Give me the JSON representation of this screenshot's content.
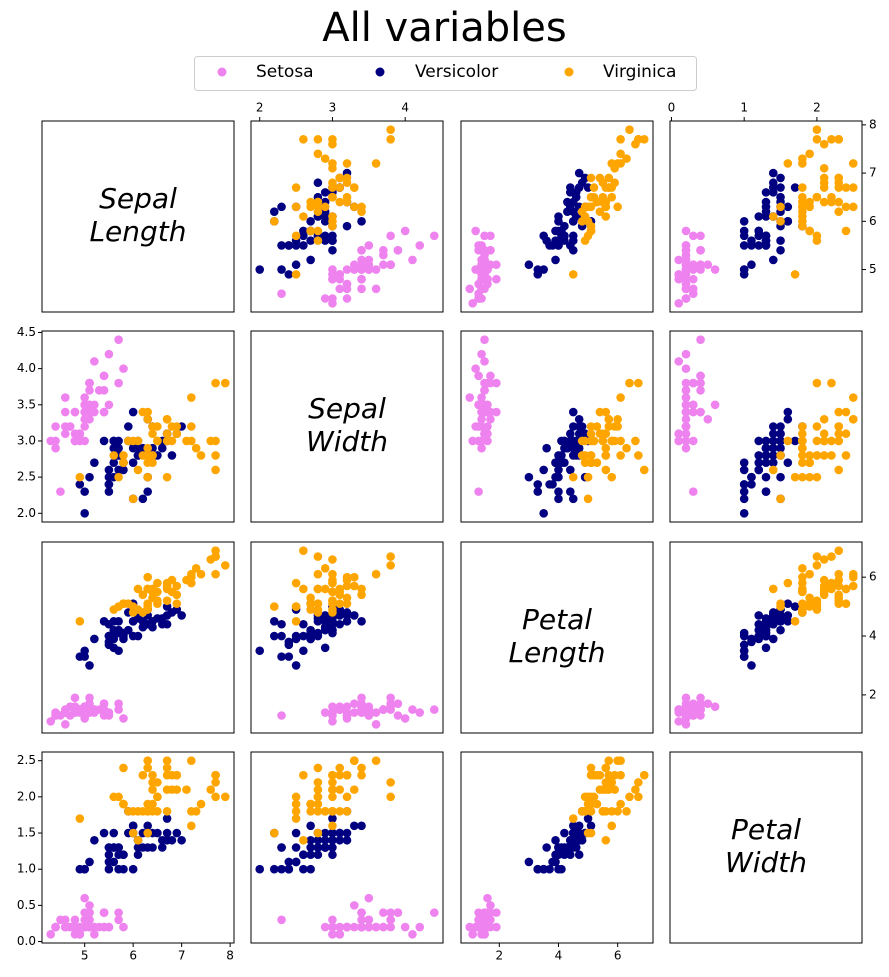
{
  "chart_data": {
    "type": "scatter_matrix",
    "title": "All variables",
    "variables": [
      {
        "label": [
          "Sepal",
          "Length"
        ],
        "lim": [
          4.12,
          8.08
        ],
        "xticks": [
          5,
          6,
          7,
          8
        ],
        "yticks": [
          5,
          6,
          7,
          8
        ]
      },
      {
        "label": [
          "Sepal",
          "Width"
        ],
        "lim": [
          1.88,
          4.52
        ],
        "xticks": [
          2,
          3,
          4
        ],
        "yticks": [
          {
            "value": 2,
            "label": "2.0"
          },
          2.5,
          {
            "value": 3,
            "label": "3.0"
          },
          3.5,
          {
            "value": 4,
            "label": "4.0"
          },
          4.5
        ]
      },
      {
        "label": [
          "Petal",
          "Length"
        ],
        "lim": [
          0.705,
          7.195
        ],
        "xticks": [
          2,
          4,
          6
        ],
        "yticks": [
          2,
          4,
          6
        ]
      },
      {
        "label": [
          "Petal",
          "Width"
        ],
        "lim": [
          -0.02,
          2.62
        ],
        "xticks": [
          0,
          1,
          2
        ],
        "yticks": [
          {
            "value": 0,
            "label": "0.0"
          },
          0.5,
          {
            "value": 1,
            "label": "1.0"
          },
          1.5,
          {
            "value": 2,
            "label": "2.0"
          },
          2.5
        ]
      }
    ],
    "series": [
      {
        "name": "Setosa",
        "color": "violet",
        "values": [
          [
            5.1,
            4.9,
            4.7,
            4.6,
            5.0,
            5.4,
            4.6,
            5.0,
            4.4,
            4.9,
            5.4,
            4.8,
            4.8,
            4.3,
            5.8,
            5.7,
            5.4,
            5.1,
            5.7,
            5.1,
            5.4,
            5.1,
            4.6,
            5.1,
            4.8,
            5.0,
            5.0,
            5.2,
            5.2,
            4.7,
            4.8,
            5.4,
            5.2,
            5.5,
            4.9,
            5.0,
            5.5,
            4.9,
            4.4,
            5.1,
            5.0,
            4.5,
            4.4,
            5.0,
            5.1,
            4.8,
            5.1,
            4.6,
            5.3,
            5.0
          ],
          [
            3.5,
            3.0,
            3.2,
            3.1,
            3.6,
            3.9,
            3.4,
            3.4,
            2.9,
            3.1,
            3.7,
            3.4,
            3.0,
            3.0,
            4.0,
            4.4,
            3.9,
            3.5,
            3.8,
            3.8,
            3.4,
            3.7,
            3.6,
            3.3,
            3.4,
            3.0,
            3.4,
            3.5,
            3.4,
            3.2,
            3.1,
            3.4,
            4.1,
            4.2,
            3.1,
            3.2,
            3.5,
            3.1,
            3.0,
            3.4,
            3.5,
            2.3,
            3.2,
            3.5,
            3.8,
            3.0,
            3.8,
            3.2,
            3.7,
            3.3
          ],
          [
            1.4,
            1.4,
            1.3,
            1.5,
            1.4,
            1.7,
            1.4,
            1.5,
            1.4,
            1.5,
            1.5,
            1.6,
            1.4,
            1.1,
            1.2,
            1.5,
            1.3,
            1.4,
            1.7,
            1.5,
            1.7,
            1.5,
            1.0,
            1.7,
            1.9,
            1.6,
            1.6,
            1.5,
            1.4,
            1.6,
            1.6,
            1.5,
            1.5,
            1.4,
            1.5,
            1.2,
            1.3,
            1.5,
            1.3,
            1.5,
            1.3,
            1.3,
            1.3,
            1.6,
            1.9,
            1.4,
            1.6,
            1.4,
            1.5,
            1.4
          ],
          [
            0.2,
            0.2,
            0.2,
            0.2,
            0.2,
            0.4,
            0.3,
            0.2,
            0.2,
            0.1,
            0.2,
            0.2,
            0.1,
            0.1,
            0.2,
            0.4,
            0.4,
            0.3,
            0.3,
            0.3,
            0.2,
            0.4,
            0.2,
            0.5,
            0.2,
            0.2,
            0.4,
            0.2,
            0.2,
            0.2,
            0.2,
            0.4,
            0.1,
            0.2,
            0.1,
            0.2,
            0.2,
            0.1,
            0.2,
            0.2,
            0.3,
            0.3,
            0.2,
            0.6,
            0.4,
            0.3,
            0.2,
            0.2,
            0.2,
            0.2
          ]
        ]
      },
      {
        "name": "Versicolor",
        "color": "navy",
        "values": [
          [
            7.0,
            6.4,
            6.9,
            5.5,
            6.5,
            5.7,
            6.3,
            4.9,
            6.6,
            5.2,
            5.0,
            5.9,
            6.0,
            6.1,
            5.6,
            6.7,
            5.6,
            5.8,
            6.2,
            5.6,
            5.9,
            6.1,
            6.3,
            6.1,
            6.4,
            6.6,
            6.8,
            6.7,
            6.0,
            5.7,
            5.5,
            5.5,
            5.8,
            6.0,
            5.4,
            6.0,
            6.7,
            6.3,
            5.6,
            5.5,
            5.5,
            6.1,
            5.8,
            5.0,
            5.6,
            5.7,
            5.7,
            6.2,
            5.1,
            5.7
          ],
          [
            3.2,
            3.2,
            3.1,
            2.3,
            2.8,
            2.8,
            3.3,
            2.4,
            2.9,
            2.7,
            2.0,
            3.0,
            2.2,
            2.9,
            2.9,
            3.1,
            3.0,
            2.7,
            2.2,
            2.5,
            3.2,
            2.8,
            2.5,
            2.8,
            2.9,
            3.0,
            2.8,
            3.0,
            2.9,
            2.6,
            2.4,
            2.4,
            2.7,
            2.7,
            3.0,
            3.4,
            3.1,
            2.3,
            3.0,
            2.5,
            2.6,
            3.0,
            2.6,
            2.3,
            2.7,
            3.0,
            2.9,
            2.9,
            2.5,
            2.8
          ],
          [
            4.7,
            4.5,
            4.9,
            4.0,
            4.6,
            4.5,
            4.7,
            3.3,
            4.6,
            3.9,
            3.5,
            4.2,
            4.0,
            4.7,
            3.6,
            4.4,
            4.5,
            4.1,
            4.5,
            3.9,
            4.8,
            4.0,
            4.9,
            4.7,
            4.3,
            4.4,
            4.8,
            5.0,
            4.5,
            3.5,
            3.8,
            3.7,
            3.9,
            5.1,
            4.5,
            4.5,
            4.7,
            4.4,
            4.1,
            4.0,
            4.4,
            4.6,
            4.0,
            3.3,
            4.2,
            4.2,
            4.2,
            4.3,
            3.0,
            4.1
          ],
          [
            1.4,
            1.5,
            1.5,
            1.3,
            1.5,
            1.3,
            1.6,
            1.0,
            1.3,
            1.4,
            1.0,
            1.5,
            1.0,
            1.4,
            1.3,
            1.4,
            1.5,
            1.0,
            1.5,
            1.1,
            1.8,
            1.3,
            1.5,
            1.2,
            1.3,
            1.4,
            1.4,
            1.7,
            1.5,
            1.0,
            1.1,
            1.0,
            1.2,
            1.6,
            1.5,
            1.6,
            1.5,
            1.3,
            1.3,
            1.3,
            1.2,
            1.4,
            1.2,
            1.0,
            1.3,
            1.2,
            1.3,
            1.3,
            1.1,
            1.3
          ]
        ]
      },
      {
        "name": "Virginica",
        "color": "orange",
        "values": [
          [
            6.3,
            5.8,
            7.1,
            6.3,
            6.5,
            7.6,
            4.9,
            7.3,
            6.7,
            7.2,
            6.5,
            6.4,
            6.8,
            5.7,
            5.8,
            6.4,
            6.5,
            7.7,
            7.7,
            6.0,
            6.9,
            5.6,
            7.7,
            6.3,
            6.7,
            7.2,
            6.2,
            6.1,
            6.4,
            7.2,
            7.4,
            7.9,
            6.4,
            6.3,
            6.1,
            7.7,
            6.3,
            6.4,
            6.0,
            6.9,
            6.7,
            6.9,
            5.8,
            6.8,
            6.7,
            6.7,
            6.3,
            6.5,
            6.2,
            5.9
          ],
          [
            3.3,
            2.7,
            3.0,
            2.9,
            3.0,
            3.0,
            2.5,
            2.9,
            2.5,
            3.6,
            3.2,
            2.7,
            3.0,
            2.5,
            2.8,
            3.2,
            3.0,
            3.8,
            2.6,
            2.2,
            3.2,
            2.8,
            2.8,
            2.7,
            3.3,
            3.2,
            2.8,
            3.0,
            2.8,
            3.0,
            2.8,
            3.8,
            2.8,
            2.8,
            2.6,
            3.0,
            3.4,
            3.1,
            3.0,
            3.1,
            3.1,
            3.1,
            2.7,
            3.2,
            3.3,
            3.0,
            2.5,
            3.0,
            3.4,
            3.0
          ],
          [
            6.0,
            5.1,
            5.9,
            5.6,
            5.8,
            6.6,
            4.5,
            6.3,
            5.8,
            6.1,
            5.1,
            5.3,
            5.5,
            5.0,
            5.1,
            5.3,
            5.5,
            6.7,
            6.9,
            5.0,
            5.7,
            4.9,
            6.7,
            4.9,
            5.7,
            6.0,
            4.8,
            4.9,
            5.6,
            5.8,
            6.1,
            6.4,
            5.6,
            5.1,
            5.6,
            6.1,
            5.6,
            5.5,
            4.8,
            5.4,
            5.6,
            5.1,
            5.1,
            5.9,
            5.7,
            5.2,
            5.0,
            5.2,
            5.4,
            5.1
          ],
          [
            2.5,
            1.9,
            2.1,
            1.8,
            2.2,
            2.1,
            1.7,
            1.8,
            1.8,
            2.5,
            2.0,
            1.9,
            2.1,
            2.0,
            2.4,
            2.3,
            1.8,
            2.2,
            2.3,
            1.5,
            2.3,
            2.0,
            2.0,
            1.8,
            2.1,
            1.8,
            1.8,
            1.8,
            2.1,
            1.6,
            1.9,
            2.0,
            2.2,
            1.5,
            1.4,
            2.3,
            2.4,
            1.8,
            1.8,
            2.1,
            2.4,
            2.3,
            1.9,
            2.3,
            2.5,
            2.3,
            1.9,
            2.0,
            2.3,
            1.8
          ]
        ]
      }
    ]
  }
}
